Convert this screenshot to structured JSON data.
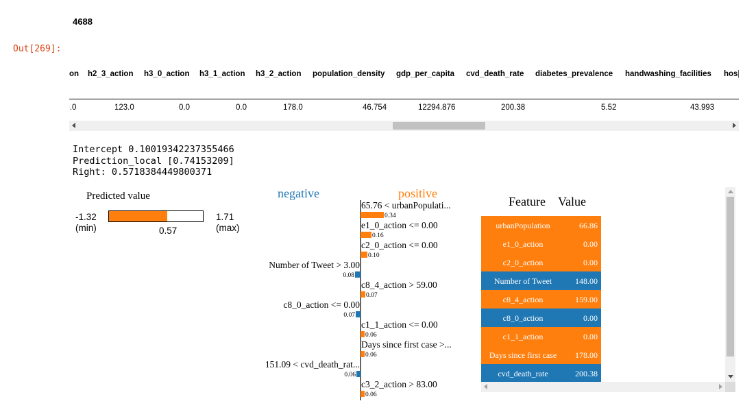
{
  "cell": {
    "printed_count": "4688",
    "out_prompt": "Out[269]:"
  },
  "dataframe": {
    "columns": [
      {
        "label": "on",
        "value": ").0"
      },
      {
        "label": "h2_3_action",
        "value": "123.0"
      },
      {
        "label": "h3_0_action",
        "value": "0.0"
      },
      {
        "label": "h3_1_action",
        "value": "0.0"
      },
      {
        "label": "h3_2_action",
        "value": "178.0"
      },
      {
        "label": "population_density",
        "value": "46.754"
      },
      {
        "label": "gdp_per_capita",
        "value": "12294.876"
      },
      {
        "label": "cvd_death_rate",
        "value": "200.38"
      },
      {
        "label": "diabetes_prevalence",
        "value": "5.52"
      },
      {
        "label": "handwashing_facilities",
        "value": "43.993"
      },
      {
        "label": "hos|",
        "value": ""
      }
    ]
  },
  "explanation_text": {
    "intercept": "Intercept 0.10019342237355466",
    "prediction_local": "Prediction_local [0.74153209]",
    "right": "Right: 0.5718384449800371"
  },
  "predicted_value": {
    "title": "Predicted value",
    "min_value": "-1.32",
    "min_label": "(min)",
    "max_value": "1.71",
    "max_label": "(max)",
    "value_label": "0.57",
    "min": -1.32,
    "max": 1.71,
    "value": 0.57
  },
  "colors": {
    "positive": "#ff7f0e",
    "negative": "#1f77b4"
  },
  "chart_data": {
    "type": "bar",
    "negative_label": "negative",
    "positive_label": "positive",
    "bars": [
      {
        "label": "65.76 < urbanPopulati...",
        "weight": 0.34,
        "value_label": "0.34",
        "side": "positive"
      },
      {
        "label": "e1_0_action <= 0.00",
        "weight": 0.16,
        "value_label": "0.16",
        "side": "positive"
      },
      {
        "label": "c2_0_action <= 0.00",
        "weight": 0.1,
        "value_label": "0.10",
        "side": "positive"
      },
      {
        "label": "Number of Tweet > 3.00",
        "weight": 0.08,
        "value_label": "0.08",
        "side": "negative"
      },
      {
        "label": "c8_4_action > 59.00",
        "weight": 0.07,
        "value_label": "0.07",
        "side": "positive"
      },
      {
        "label": "c8_0_action <= 0.00",
        "weight": 0.07,
        "value_label": "0.07",
        "side": "negative"
      },
      {
        "label": "c1_1_action <= 0.00",
        "weight": 0.06,
        "value_label": "0.06",
        "side": "positive"
      },
      {
        "label": "Days since first case >...",
        "weight": 0.06,
        "value_label": "0.06",
        "side": "positive"
      },
      {
        "label": "151.09 < cvd_death_rat...",
        "weight": 0.06,
        "value_label": "0.06",
        "side": "negative"
      },
      {
        "label": "c3_2_action > 83.00",
        "weight": 0.06,
        "value_label": "0.06",
        "side": "positive"
      }
    ]
  },
  "feature_table": {
    "header_feature": "Feature",
    "header_value": "Value",
    "rows": [
      {
        "feature": "urbanPopulation",
        "value": "66.86",
        "side": "positive"
      },
      {
        "feature": "e1_0_action",
        "value": "0.00",
        "side": "positive"
      },
      {
        "feature": "c2_0_action",
        "value": "0.00",
        "side": "positive"
      },
      {
        "feature": "Number of Tweet",
        "value": "148.00",
        "side": "negative"
      },
      {
        "feature": "c8_4_action",
        "value": "159.00",
        "side": "positive"
      },
      {
        "feature": "c8_0_action",
        "value": "0.00",
        "side": "negative"
      },
      {
        "feature": "c1_1_action",
        "value": "0.00",
        "side": "positive"
      },
      {
        "feature": "Days since first case",
        "value": "178.00",
        "side": "positive"
      },
      {
        "feature": "cvd_death_rate",
        "value": "200.38",
        "side": "negative"
      }
    ]
  }
}
